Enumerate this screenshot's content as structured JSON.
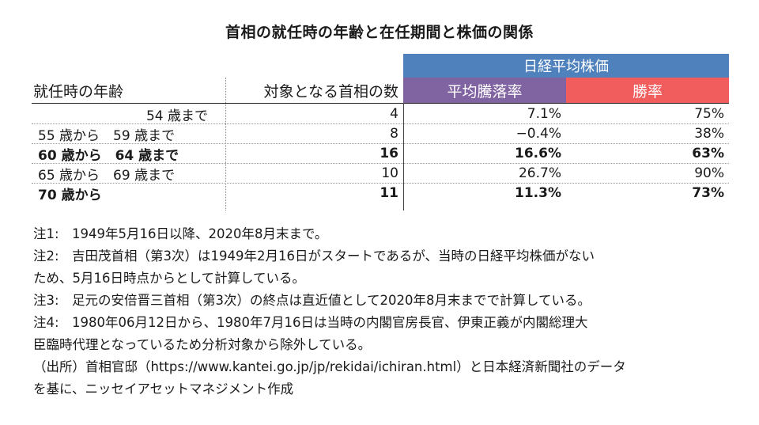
{
  "title": "首相の就任時の年齢と在任期間と株価の関係",
  "table": {
    "group_header": "日経平均株価",
    "headers": {
      "age": "就任時の年齢",
      "count": "対象となる首相の数",
      "avg": "平均騰落率",
      "win": "勝率"
    },
    "colors": {
      "group": "#4f81bd",
      "avg": "#8064a2",
      "win": "#f15d5d"
    },
    "rows": [
      {
        "age": "54 歳まで",
        "count": "4",
        "avg": "7.1%",
        "win": "75%"
      },
      {
        "age": "55 歳から　59 歳まで",
        "count": "8",
        "avg": "−0.4%",
        "win": "38%"
      },
      {
        "age": "60 歳から　64 歳まで",
        "count": "16",
        "avg": "16.6%",
        "win": "63%"
      },
      {
        "age": "65 歳から　69 歳まで",
        "count": "10",
        "avg": "26.7%",
        "win": "90%"
      },
      {
        "age": "70 歳から",
        "count": "11",
        "avg": "11.3%",
        "win": "73%"
      }
    ]
  },
  "notes": [
    "注1:　1949年5月16日以降、2020年8月末まで。",
    "注2:　吉田茂首相（第3次）は1949年2月16日がスタートであるが、当時の日経平均株価がない",
    "ため、5月16日時点からとして計算している。",
    "注3:　足元の安倍晋三首相（第3次）の終点は直近値として2020年8月末までで計算している。",
    "注4:　1980年06月12日から、1980年7月16日は当時の内閣官房長官、伊東正義が内閣総理大",
    "臣臨時代理となっているため分析対象から除外している。",
    "（出所）首相官邸（https://www.kantei.go.jp/jp/rekidai/ichiran.html）と日本経済新聞社のデータ",
    "を基に、ニッセイアセットマネジメント作成"
  ]
}
